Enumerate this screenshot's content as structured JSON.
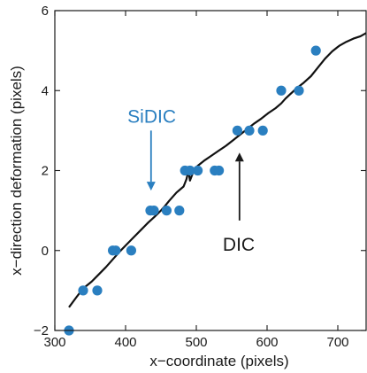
{
  "chart_data": {
    "type": "scatter",
    "xlabel": "x−coordinate (pixels)",
    "ylabel": "x−direction deformation (pixels)",
    "xlim": [
      300,
      740
    ],
    "ylim": [
      -2,
      6
    ],
    "x_ticks": [
      300,
      400,
      500,
      600,
      700
    ],
    "y_ticks": [
      -2,
      0,
      2,
      4,
      6
    ],
    "x_tick_labels": [
      "300",
      "400",
      "500",
      "600",
      "700"
    ],
    "y_tick_labels": [
      "−2",
      "0",
      "2",
      "4",
      "6"
    ],
    "grid": false,
    "colors": {
      "points": "#2a7fc0",
      "line": "#111111",
      "sidic_label": "#2a7fc0",
      "dic_label": "#1a1a1a"
    },
    "series": [
      {
        "kind": "points",
        "x": [
          320,
          340,
          360,
          382,
          386,
          408,
          435,
          440,
          458,
          476,
          484,
          491,
          502,
          526,
          532,
          558,
          575,
          594,
          620,
          645,
          669
        ],
        "y": [
          -2,
          -1,
          -1,
          0,
          0,
          0,
          1,
          1,
          1,
          1,
          2,
          2,
          2,
          2,
          2,
          3,
          3,
          3,
          4,
          4,
          5
        ]
      },
      {
        "kind": "line",
        "x": [
          320,
          330,
          340,
          352,
          362,
          372,
          382,
          392,
          402,
          412,
          422,
          432,
          442,
          450,
          456,
          462,
          472,
          482,
          486,
          489,
          491,
          496,
          502,
          512,
          522,
          532,
          542,
          552,
          562,
          572,
          582,
          592,
          602,
          612,
          620,
          626,
          632,
          642,
          652,
          662,
          672,
          682,
          692,
          702,
          712,
          722,
          732,
          740
        ],
        "y": [
          -1.42,
          -1.18,
          -0.95,
          -0.78,
          -0.6,
          -0.42,
          -0.22,
          -0.02,
          0.16,
          0.34,
          0.52,
          0.7,
          0.86,
          1.0,
          1.12,
          1.25,
          1.45,
          1.6,
          1.78,
          2.0,
          1.75,
          1.98,
          2.12,
          2.26,
          2.38,
          2.5,
          2.62,
          2.76,
          2.9,
          3.04,
          3.18,
          3.3,
          3.44,
          3.56,
          3.68,
          3.8,
          3.9,
          4.06,
          4.2,
          4.36,
          4.58,
          4.8,
          4.98,
          5.12,
          5.22,
          5.3,
          5.36,
          5.44
        ]
      }
    ],
    "annotations": [
      {
        "text": "SiDIC",
        "arrow_to": [
          436,
          1.5
        ],
        "arrow_from_y": 3.0,
        "text_pos": [
          437,
          3.35
        ]
      },
      {
        "text": "DIC",
        "arrow_to": [
          561,
          2.45
        ],
        "arrow_from_y": 0.75,
        "text_pos": [
          560,
          0.15
        ]
      }
    ]
  }
}
